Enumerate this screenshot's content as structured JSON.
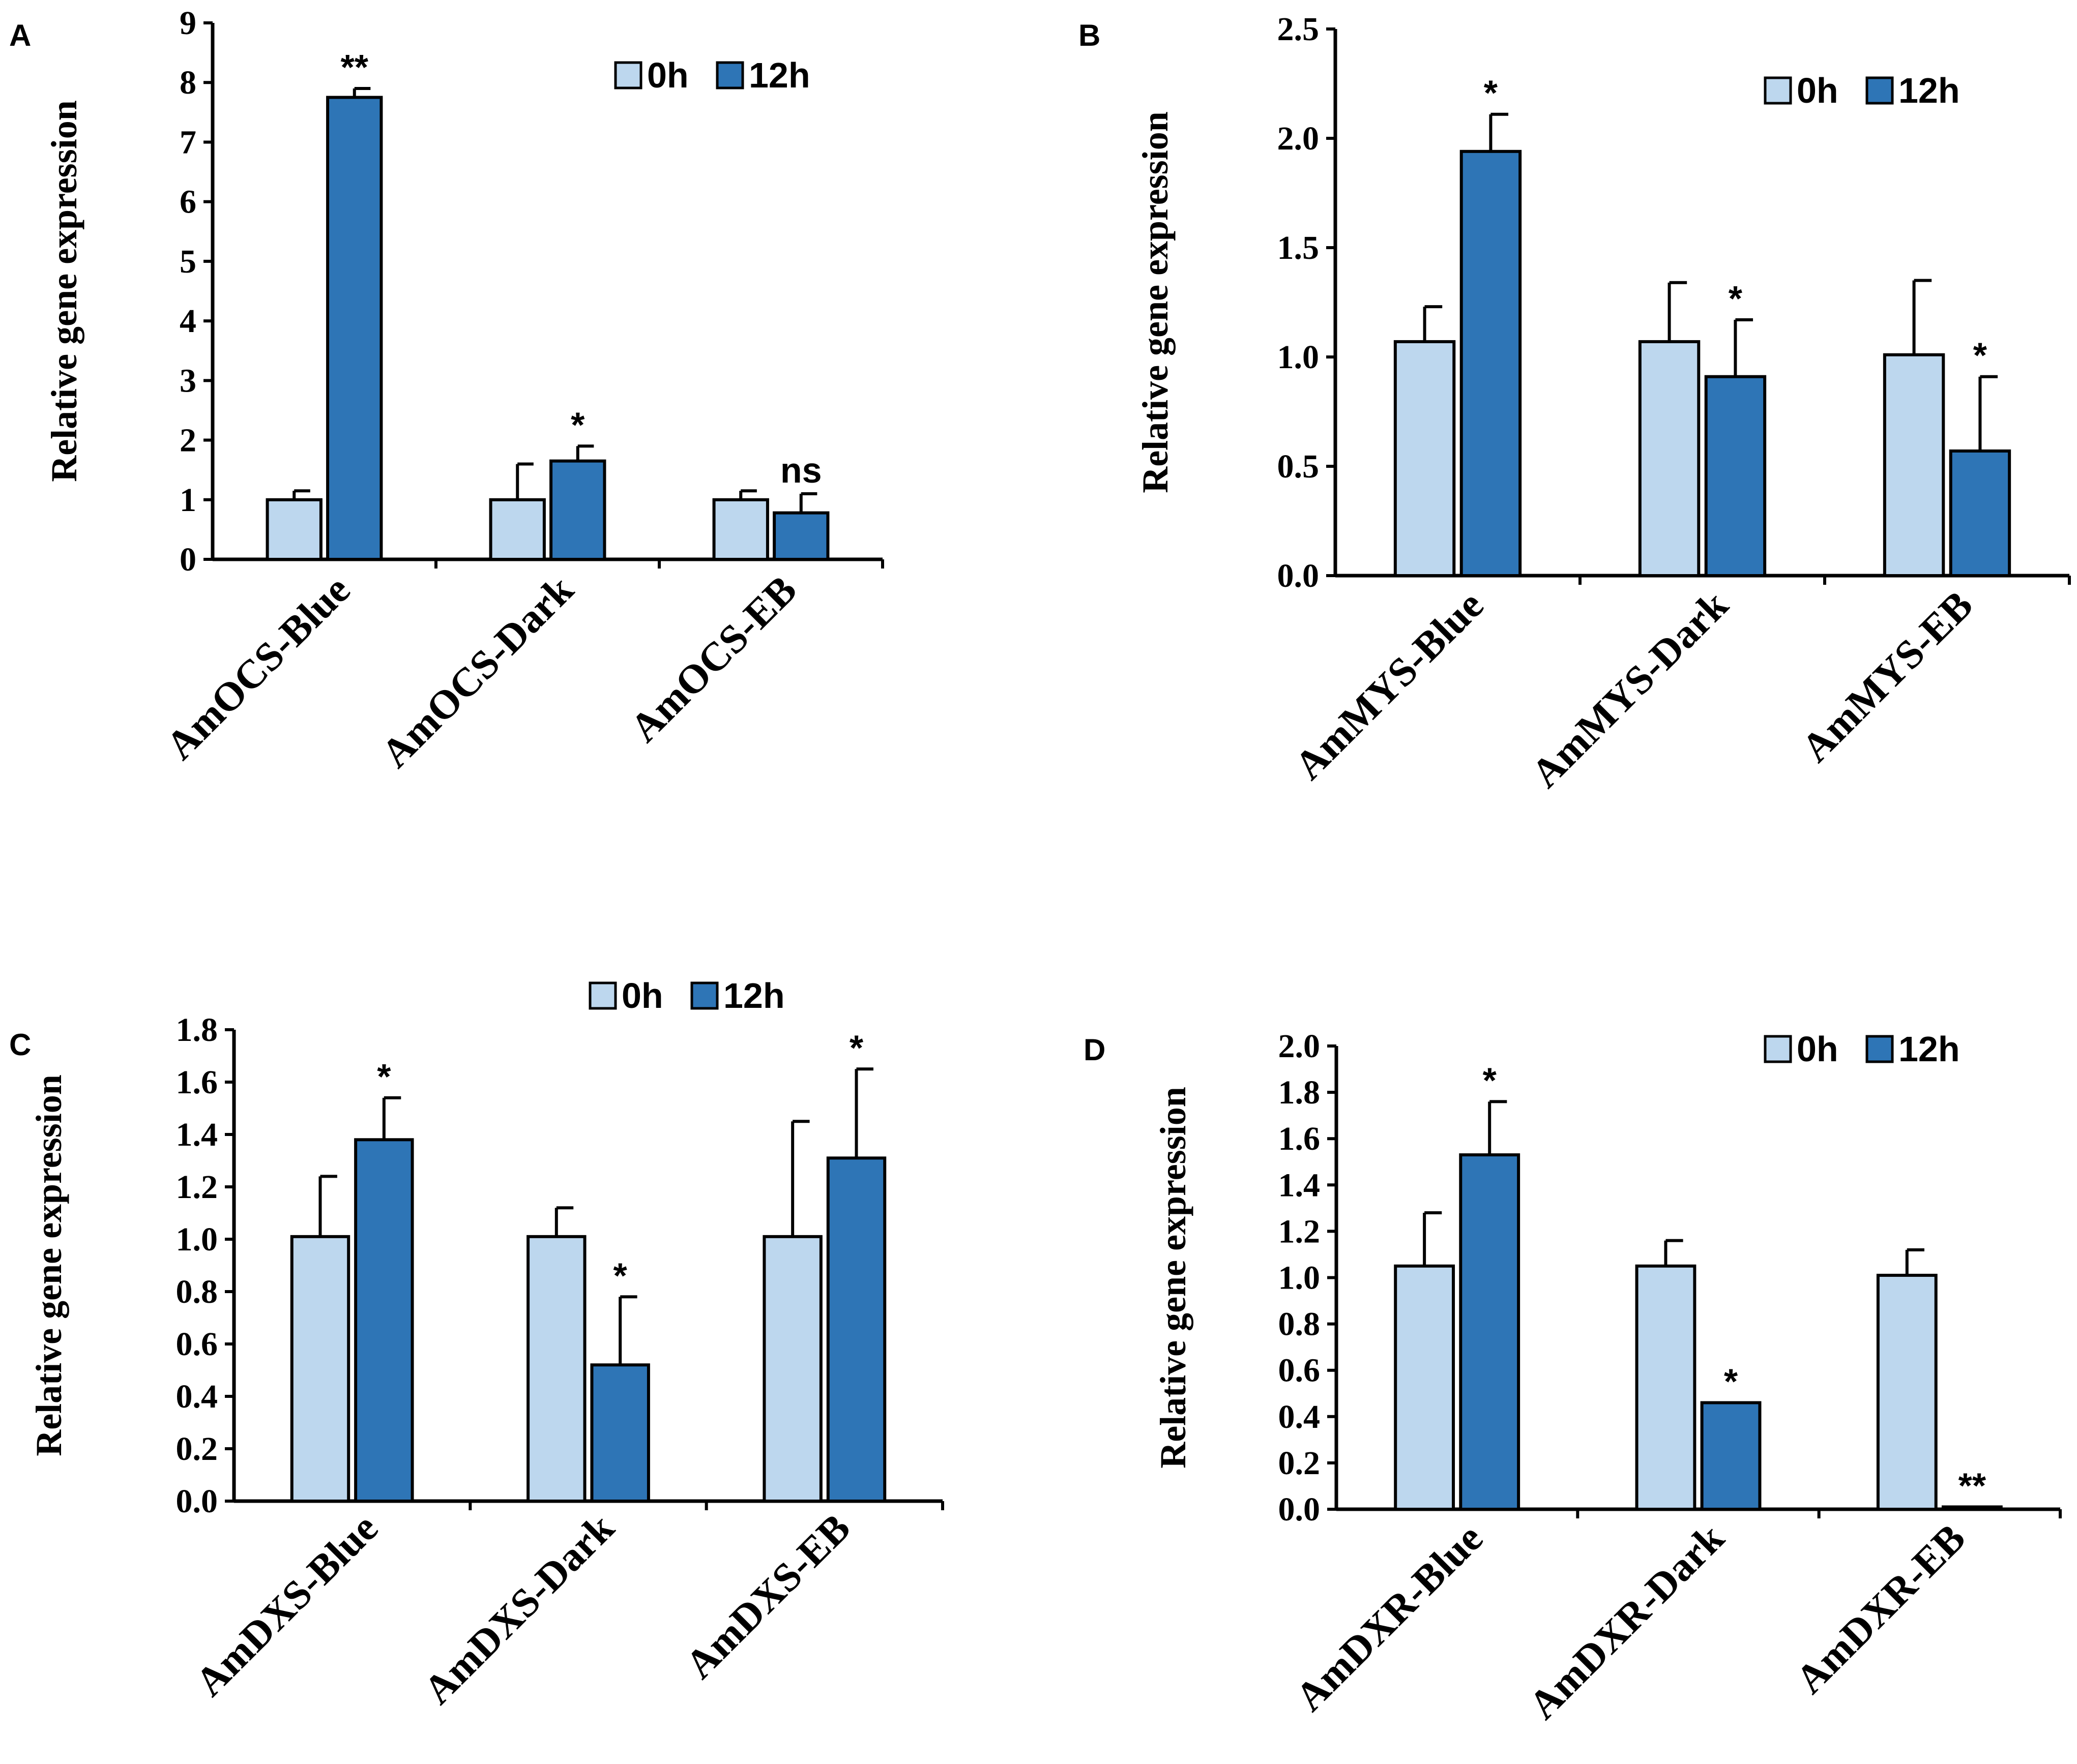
{
  "figure": {
    "colors": {
      "h0": "#bdd7ee",
      "h12": "#2e75b6",
      "ink": "#000000"
    }
  },
  "chart_data": [
    {
      "panel": "A",
      "type": "bar",
      "ylabel": "Relative gene expression",
      "ylim": [
        0,
        9
      ],
      "yticks": [
        "0",
        "1",
        "2",
        "3",
        "4",
        "5",
        "6",
        "7",
        "8",
        "9"
      ],
      "categories": [
        "AmOCS-Blue",
        "AmOCS-Dark",
        "AmOCS-EB"
      ],
      "legend": [
        "0h",
        "12h"
      ],
      "series": [
        {
          "name": "0h",
          "values": [
            1.0,
            1.0,
            1.0
          ],
          "errors": [
            0.15,
            0.6,
            0.15
          ]
        },
        {
          "name": "12h",
          "values": [
            7.75,
            1.65,
            0.78
          ],
          "errors": [
            0.15,
            0.25,
            0.32
          ]
        }
      ],
      "significance": [
        "**",
        "*",
        "ns"
      ]
    },
    {
      "panel": "B",
      "type": "bar",
      "ylabel": "Relative gene expression",
      "ylim": [
        0,
        2.5
      ],
      "yticks": [
        "0.0",
        "0.5",
        "1.0",
        "1.5",
        "2.0",
        "2.5"
      ],
      "categories": [
        "AmMYS-Blue",
        "AmMYS-Dark",
        "AmMYS-EB"
      ],
      "legend": [
        "0h",
        "12h"
      ],
      "series": [
        {
          "name": "0h",
          "values": [
            1.07,
            1.07,
            1.01
          ],
          "errors": [
            0.16,
            0.27,
            0.34
          ]
        },
        {
          "name": "12h",
          "values": [
            1.94,
            0.91,
            0.57
          ],
          "errors": [
            0.17,
            0.26,
            0.34
          ]
        }
      ],
      "significance": [
        "*",
        "*",
        "*"
      ]
    },
    {
      "panel": "C",
      "type": "bar",
      "ylabel": "Relative gene expression",
      "ylim": [
        0,
        1.8
      ],
      "yticks": [
        "0.0",
        "0.2",
        "0.4",
        "0.6",
        "0.8",
        "1.0",
        "1.2",
        "1.4",
        "1.6",
        "1.8"
      ],
      "categories": [
        "AmDXS-Blue",
        "AmDXS-Dark",
        "AmDXS-EB"
      ],
      "legend": [
        "0h",
        "12h"
      ],
      "series": [
        {
          "name": "0h",
          "values": [
            1.01,
            1.01,
            1.01
          ],
          "errors": [
            0.23,
            0.11,
            0.44
          ]
        },
        {
          "name": "12h",
          "values": [
            1.38,
            0.52,
            1.31
          ],
          "errors": [
            0.16,
            0.26,
            0.34
          ]
        }
      ],
      "significance": [
        "*",
        "*",
        "*"
      ]
    },
    {
      "panel": "D",
      "type": "bar",
      "ylabel": "Relative gene expression",
      "ylim": [
        0,
        2.0
      ],
      "yticks": [
        "0.0",
        "0.2",
        "0.4",
        "0.6",
        "0.8",
        "1.0",
        "1.2",
        "1.4",
        "1.6",
        "1.8",
        "2.0"
      ],
      "categories": [
        "AmDXR-Blue",
        "AmDXR-Dark",
        "AmDXR-EB"
      ],
      "legend": [
        "0h",
        "12h"
      ],
      "series": [
        {
          "name": "0h",
          "values": [
            1.05,
            1.05,
            1.01
          ],
          "errors": [
            0.23,
            0.11,
            0.11
          ]
        },
        {
          "name": "12h",
          "values": [
            1.53,
            0.46,
            0.01
          ],
          "errors": [
            0.23,
            0.0,
            0.0
          ]
        }
      ],
      "significance": [
        "*",
        "*",
        "**"
      ]
    }
  ]
}
